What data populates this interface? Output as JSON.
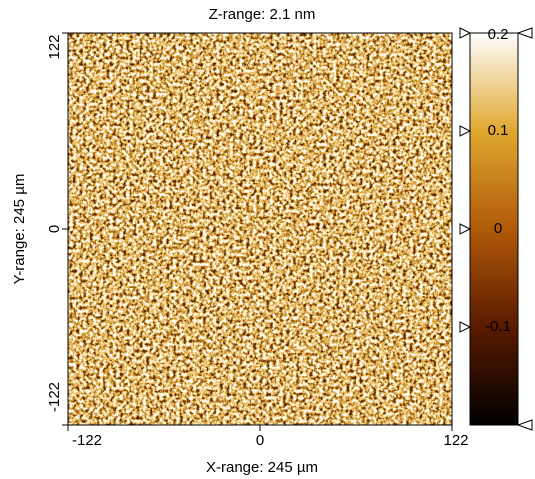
{
  "chart_data": {
    "type": "heatmap",
    "title": "Z-range: 2.1 nm",
    "x_label": "X-range:  245 µm",
    "y_label": "Y-range:  245 µm",
    "xlim": [
      -122,
      122
    ],
    "xticks": [
      -122,
      0,
      122
    ],
    "ylim": [
      -122,
      122
    ],
    "yticks": [
      -122,
      0,
      122
    ],
    "colorbar": {
      "lim": [
        -0.2,
        0.2
      ],
      "ticks": [
        0.2,
        0.1,
        0,
        -0.1
      ],
      "colors": [
        "#000000",
        "#5a1a00",
        "#b05a08",
        "#e0a830",
        "#ffffff"
      ]
    }
  }
}
